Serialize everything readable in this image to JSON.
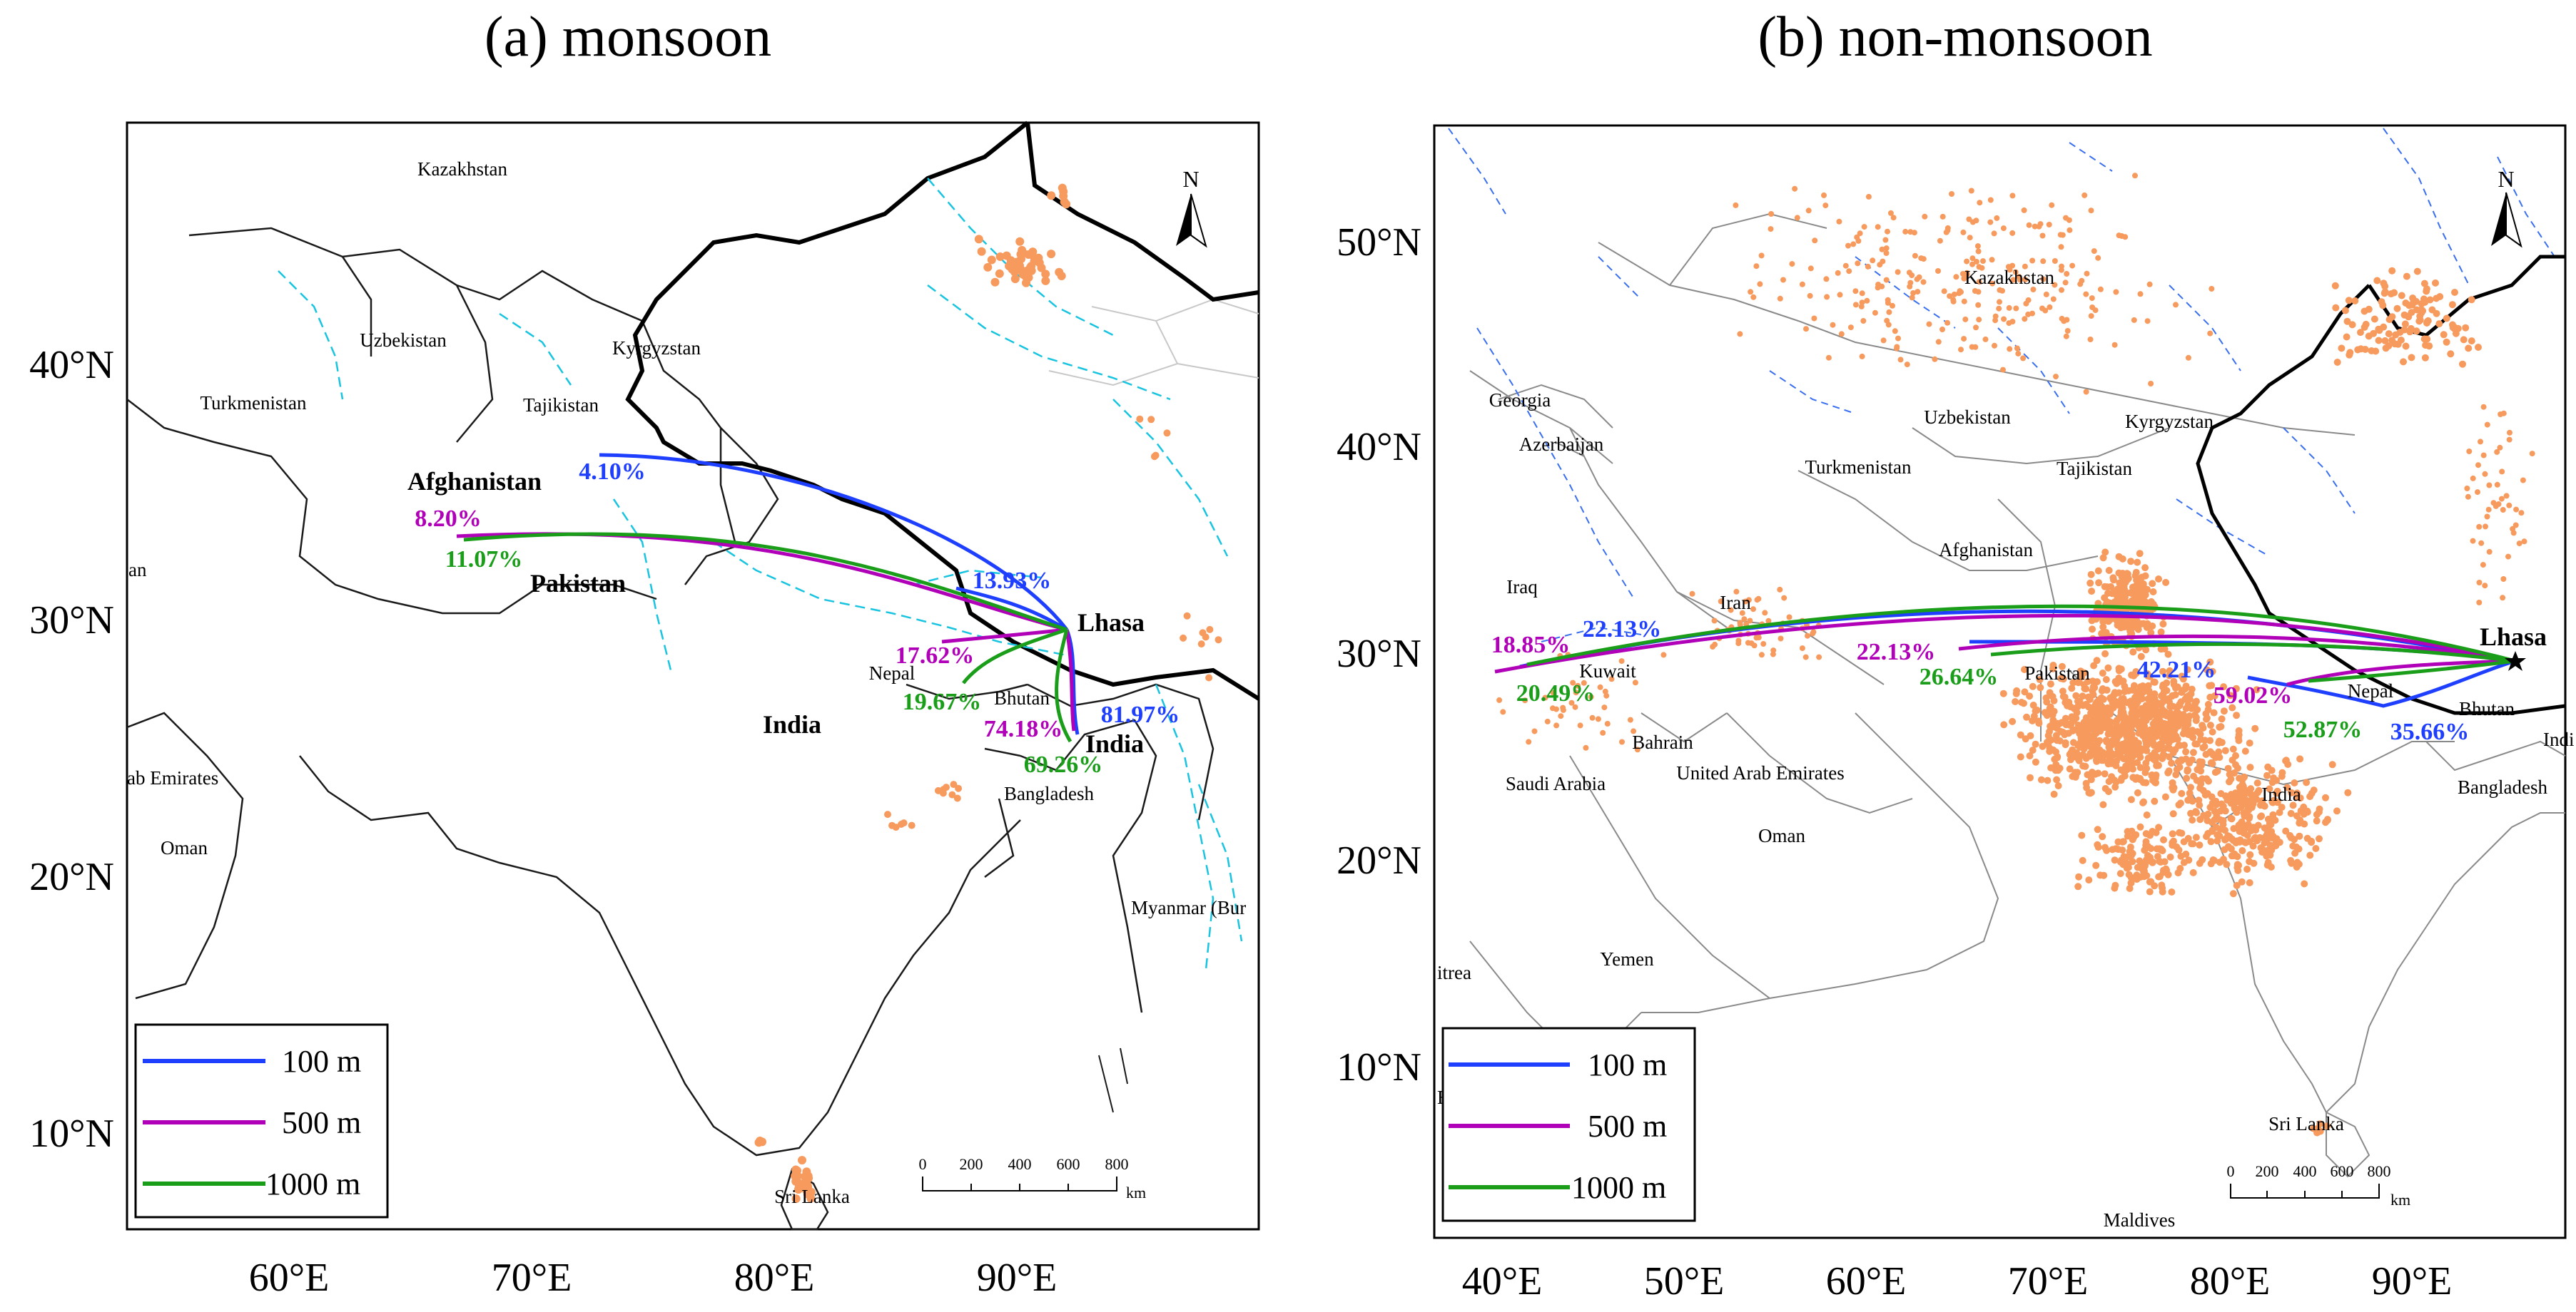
{
  "colors": {
    "m100": "#1f3fff",
    "m500": "#b000b8",
    "m1000": "#1a9e1a",
    "fire": "#f79a5e",
    "river": "#19c4e0",
    "border": "#1a1a1a"
  },
  "panels": [
    {
      "title": "(a)  monsoon",
      "lat_ticks": [
        "40°N",
        "30°N",
        "20°N",
        "10°N"
      ],
      "lon_ticks": [
        "60°E",
        "70°E",
        "80°E",
        "90°E"
      ],
      "countries": [
        "Kazakhstan",
        "Uzbekistan",
        "Kyrgyzstan",
        "Turkmenistan",
        "Tajikistan",
        "Nepal",
        "Bhutan",
        "Bangladesh",
        "Myanmar (Bur",
        "ab Emirates",
        "Oman",
        "Sri Lanka",
        "an"
      ],
      "countries_bold": [
        "Afghanistan",
        "Pakistan",
        "India",
        "India"
      ],
      "city": "Lhasa",
      "north": "N",
      "percentages": {
        "m100": [
          "4.10%",
          "13.93%",
          "81.97%"
        ],
        "m500": [
          "8.20%",
          "17.62%",
          "74.18%"
        ],
        "m1000": [
          "11.07%",
          "19.67%",
          "69.26%"
        ]
      },
      "legend": [
        "100 m",
        "500 m",
        "1000 m"
      ],
      "scale": {
        "ticks": [
          "0",
          "200",
          "400",
          "600",
          "800"
        ],
        "unit": "km"
      }
    },
    {
      "title": "(b)  non-monsoon",
      "lat_ticks": [
        "50°N",
        "40°N",
        "30°N",
        "20°N",
        "10°N"
      ],
      "lon_ticks": [
        "40°E",
        "50°E",
        "60°E",
        "70°E",
        "80°E",
        "90°E"
      ],
      "countries": [
        "Kazakhstan",
        "Georgia",
        "Azerbaijan",
        "Uzbekistan",
        "Kyrgyzstan",
        "Turkmenistan",
        "Tajikistan",
        "Iraq",
        "Iran",
        "Afghanistan",
        "Kuwait",
        "Pakistan",
        "Bahrain",
        "United Arab Emirates",
        "Saudi Arabia",
        "Oman",
        "Yemen",
        "Nepal",
        "Bhutan",
        "India",
        "Bangladesh",
        "Indi",
        "Sri Lanka",
        "Maldives",
        "itrea",
        "Et"
      ],
      "city": "Lhasa",
      "north": "N",
      "percentages": {
        "m100": [
          "22.13%",
          "42.21%",
          "35.66%"
        ],
        "m500": [
          "18.85%",
          "22.13%",
          "59.02%"
        ],
        "m1000": [
          "20.49%",
          "26.64%",
          "52.87%"
        ]
      },
      "legend": [
        "100 m",
        "500 m",
        "1000 m"
      ],
      "scale": {
        "ticks": [
          "0",
          "200",
          "400",
          "600",
          "800"
        ],
        "unit": "km"
      }
    }
  ]
}
